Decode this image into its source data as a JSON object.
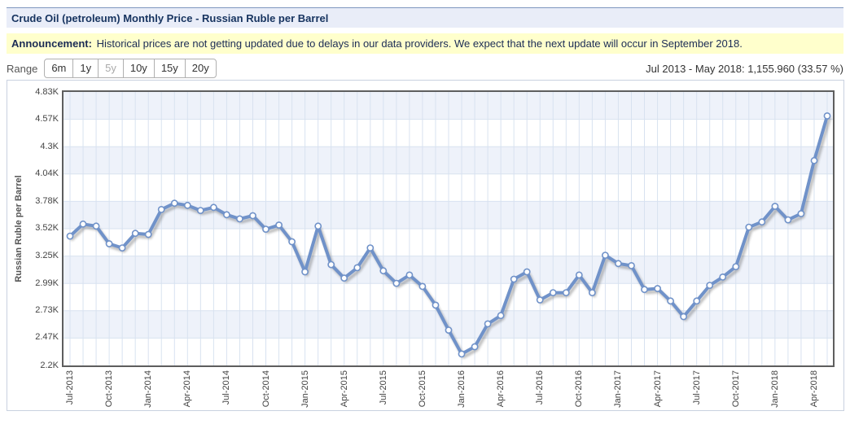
{
  "header": {
    "title": "Crude Oil (petroleum) Monthly Price - Russian Ruble per Barrel"
  },
  "announcement": {
    "label": "Announcement:",
    "text": "Historical prices are not getting updated due to delays in our data providers. We expect that the next update will occur in September 2018."
  },
  "range": {
    "label": "Range",
    "options": [
      "6m",
      "1y",
      "5y",
      "10y",
      "15y",
      "20y"
    ],
    "active": "5y"
  },
  "summary": "Jul 2013 - May 2018: 1,155.960 (33.57 %)",
  "colors": {
    "titlebar_bg": "#E9EDF8",
    "titlebar_border": "#7E96BE",
    "announcement_bg": "#FFFFCC",
    "line": "#7092C9",
    "marker_fill": "#FFFFFF",
    "band": "#EEF2FA",
    "grid": "#D8E2F0",
    "plot_border": "#5E5E5E"
  },
  "chart_data": {
    "type": "line",
    "title": "Crude Oil (petroleum) Monthly Price - Russian Ruble per Barrel",
    "xlabel": "",
    "ylabel": "Russian Ruble per Barrel",
    "ylim": [
      2200,
      4830
    ],
    "grid": true,
    "legend": "none",
    "yticks": [
      {
        "value": 4830,
        "label": "4.83K"
      },
      {
        "value": 4570,
        "label": "4.57K"
      },
      {
        "value": 4300,
        "label": "4.3K"
      },
      {
        "value": 4040,
        "label": "4.04K"
      },
      {
        "value": 3780,
        "label": "3.78K"
      },
      {
        "value": 3520,
        "label": "3.52K"
      },
      {
        "value": 3250,
        "label": "3.25K"
      },
      {
        "value": 2990,
        "label": "2.99K"
      },
      {
        "value": 2730,
        "label": "2.73K"
      },
      {
        "value": 2470,
        "label": "2.47K"
      },
      {
        "value": 2200,
        "label": "2.2K"
      }
    ],
    "xtick_every": 3,
    "x": [
      "Jul-2013",
      "Aug-2013",
      "Sep-2013",
      "Oct-2013",
      "Nov-2013",
      "Dec-2013",
      "Jan-2014",
      "Feb-2014",
      "Mar-2014",
      "Apr-2014",
      "May-2014",
      "Jun-2014",
      "Jul-2014",
      "Aug-2014",
      "Sep-2014",
      "Oct-2014",
      "Nov-2014",
      "Dec-2014",
      "Jan-2015",
      "Feb-2015",
      "Mar-2015",
      "Apr-2015",
      "May-2015",
      "Jun-2015",
      "Jul-2015",
      "Aug-2015",
      "Sep-2015",
      "Oct-2015",
      "Nov-2015",
      "Dec-2015",
      "Jan-2016",
      "Feb-2016",
      "Mar-2016",
      "Apr-2016",
      "May-2016",
      "Jun-2016",
      "Jul-2016",
      "Aug-2016",
      "Sep-2016",
      "Oct-2016",
      "Nov-2016",
      "Dec-2016",
      "Jan-2017",
      "Feb-2017",
      "Mar-2017",
      "Apr-2017",
      "May-2017",
      "Jun-2017",
      "Jul-2017",
      "Aug-2017",
      "Sep-2017",
      "Oct-2017",
      "Nov-2017",
      "Dec-2017",
      "Jan-2018",
      "Feb-2018",
      "Mar-2018",
      "Apr-2018",
      "May-2018"
    ],
    "values": [
      3444,
      3560,
      3540,
      3370,
      3330,
      3470,
      3460,
      3700,
      3760,
      3740,
      3690,
      3720,
      3650,
      3610,
      3640,
      3510,
      3550,
      3390,
      3100,
      3540,
      3170,
      3040,
      3140,
      3330,
      3110,
      2990,
      3070,
      2960,
      2780,
      2540,
      2310,
      2380,
      2600,
      2680,
      3030,
      3100,
      2830,
      2900,
      2900,
      3070,
      2900,
      3260,
      3180,
      3160,
      2930,
      2940,
      2820,
      2670,
      2820,
      2970,
      3050,
      3150,
      3530,
      3580,
      3730,
      3600,
      3660,
      4170,
      4600
    ]
  }
}
